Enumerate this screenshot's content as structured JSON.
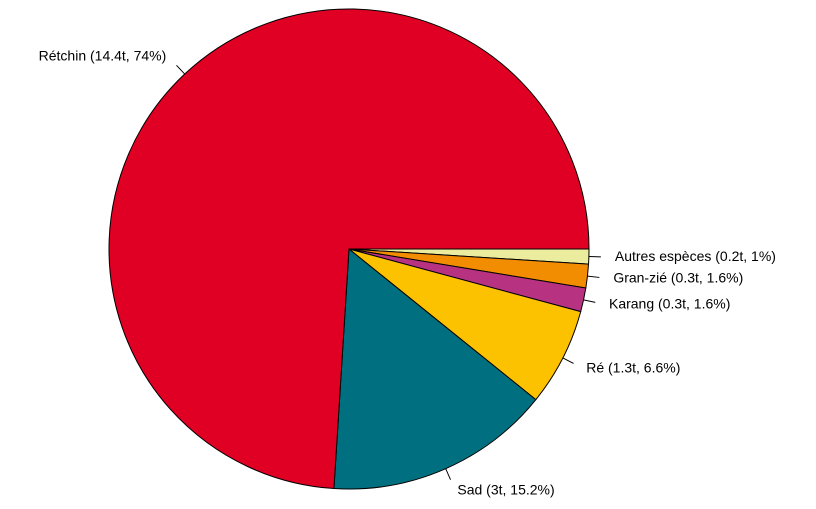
{
  "chart_data": {
    "type": "pie",
    "labels": [
      "Autres espèces (0.2t, 1%)",
      "Gran-zié (0.3t, 1.6%)",
      "Karang (0.3t, 1.6%)",
      "Ré (1.3t, 6.6%)",
      "Sad (3t, 15.2%)",
      "Rétchin (14.4t, 74%)"
    ],
    "values": [
      1,
      1.6,
      1.6,
      6.6,
      15.2,
      74
    ],
    "colors": [
      "#ecec9e",
      "#f28c00",
      "#b83282",
      "#fcc200",
      "#007080",
      "#e00024"
    ],
    "start_angle": 0,
    "clockwise": true
  }
}
